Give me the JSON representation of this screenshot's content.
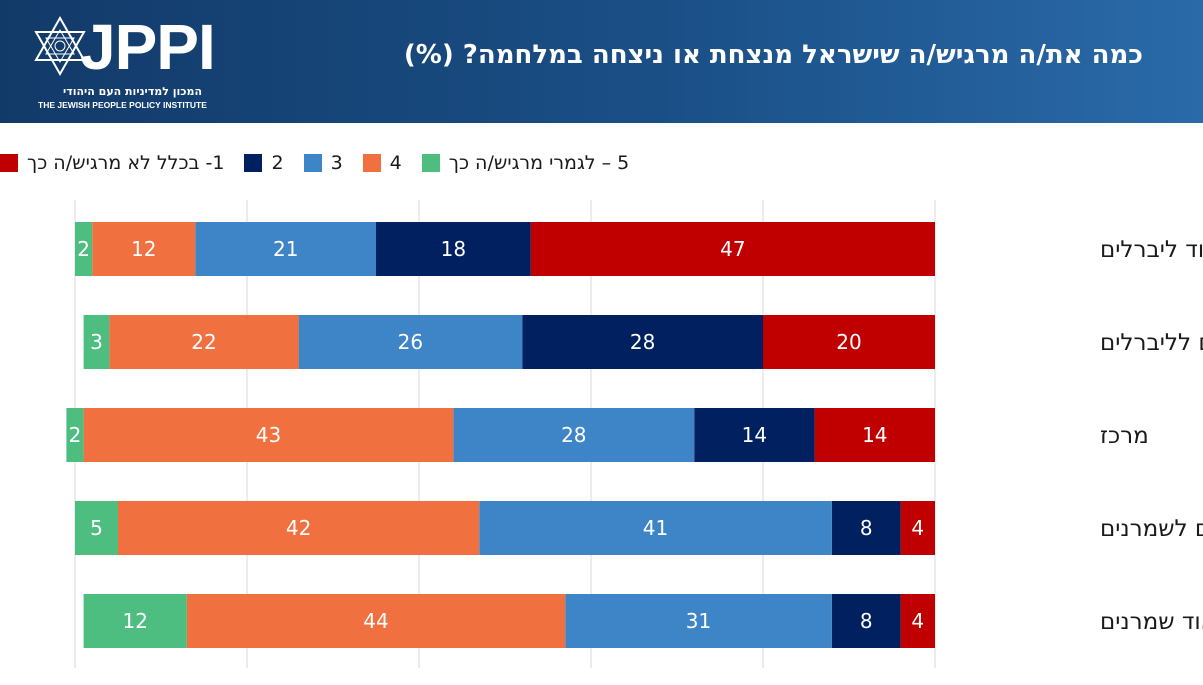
{
  "header": {
    "logo_text": "JPPI",
    "logo_hebrew": "המכון למדיניות העם היהודי",
    "logo_english": "THE JEWISH PEOPLE POLICY INSTITUTE",
    "title": "כמה את/ה מרגיש/ה שישראל מנצחת או ניצחה במלחמה? (%)"
  },
  "colors": {
    "header_bg": "#1a4f86",
    "s1": "#c00000",
    "s2": "#002060",
    "s3": "#3d85c6",
    "s4": "#f07040",
    "s5": "#4dbd80"
  },
  "chart_data": {
    "type": "bar",
    "orientation": "horizontal",
    "stacked": true,
    "title": "כמה את/ה מרגיש/ה שישראל מנצחת או ניצחה במלחמה? (%)",
    "categories": [
      "מאוד ליברלים",
      "נוטים לליברלים",
      "מרכז",
      "נוטים לשמרנים",
      "מאוד שמרנים"
    ],
    "series": [
      {
        "name": "1- בכלל לא מרגיש/ה כך",
        "color": "#c00000",
        "values": [
          47,
          20,
          14,
          4,
          4
        ]
      },
      {
        "name": "2",
        "color": "#002060",
        "values": [
          18,
          28,
          14,
          8,
          8
        ]
      },
      {
        "name": "3",
        "color": "#3d85c6",
        "values": [
          21,
          26,
          28,
          41,
          31
        ]
      },
      {
        "name": "4",
        "color": "#f07040",
        "values": [
          12,
          22,
          43,
          42,
          44
        ]
      },
      {
        "name": "5 – לגמרי מרגיש/ה כך",
        "color": "#4dbd80",
        "values": [
          2,
          3,
          2,
          5,
          12
        ]
      }
    ],
    "xlim": [
      0,
      100
    ],
    "grid": true,
    "legend": "top",
    "stack_direction": "right-to-left"
  }
}
